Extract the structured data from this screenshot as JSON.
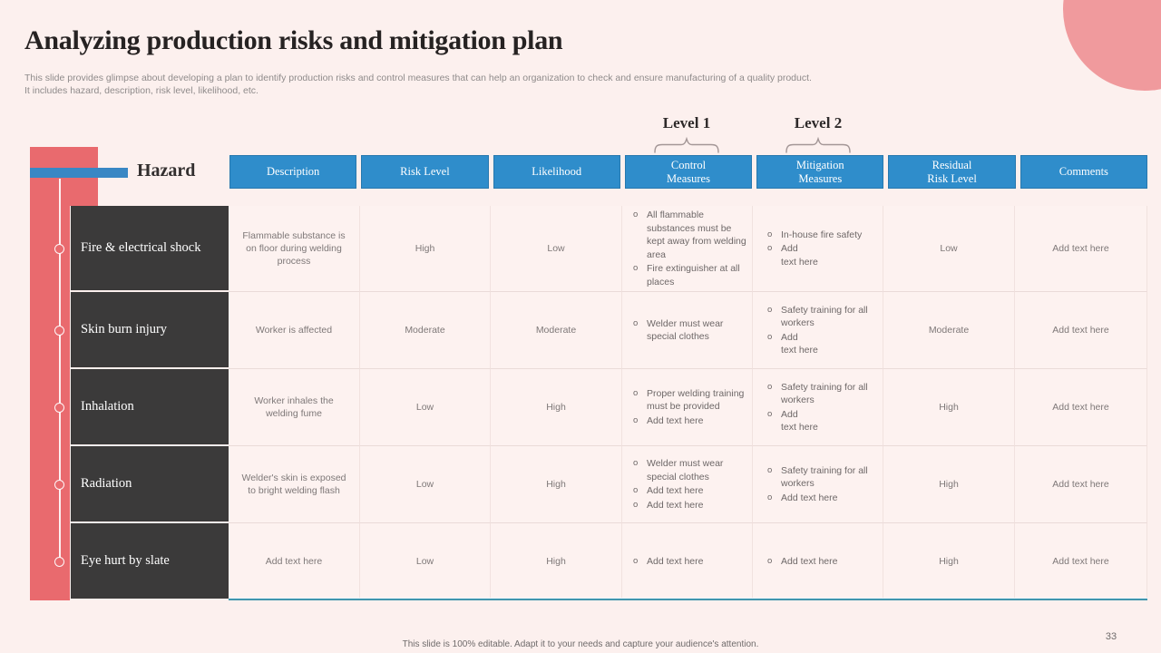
{
  "slide": {
    "title": "Analyzing production risks and mitigation plan",
    "subtitle": "This slide provides glimpse about developing a plan to identify production risks and control measures that can help an organization to check and ensure manufacturing of a quality product.\nIt includes hazard, description, risk level, likelihood, etc.",
    "footer": "This slide is 100% editable. Adapt it to your needs and capture your audience's attention.",
    "page_number": "33"
  },
  "colors": {
    "background": "#fcf0ee",
    "accent_red": "#e96a6e",
    "accent_pink_circle": "#f09a9d",
    "accent_blue": "#2f8dcb",
    "dark_cell": "#3b3a3a",
    "light_cell": "#fdf2f0",
    "underline_teal": "#4195ad"
  },
  "levels": {
    "level1": "Level 1",
    "level2": "Level 2"
  },
  "hazard_label": "Hazard",
  "bullet_marker": "o",
  "columns": [
    "Description",
    "Risk Level",
    "Likelihood",
    "Control\nMeasures",
    "Mitigation\nMeasures",
    "Residual\nRisk Level",
    "Comments"
  ],
  "rows": [
    {
      "hazard": "Fire & electrical shock",
      "description": "Flammable substance is on floor during welding process",
      "risk_level": "High",
      "likelihood": "Low",
      "control": [
        "All flammable substances must be kept away from welding area",
        "Fire extinguisher at all places"
      ],
      "mitigation": [
        "In-house fire safety",
        "Add\ntext here"
      ],
      "residual": "Low",
      "comments": "Add text here"
    },
    {
      "hazard": "Skin burn injury",
      "description": "Worker is affected",
      "risk_level": "Moderate",
      "likelihood": "Moderate",
      "control": [
        "Welder must wear special clothes"
      ],
      "mitigation": [
        "Safety training for all workers",
        "Add\ntext here"
      ],
      "residual": "Moderate",
      "comments": "Add text here"
    },
    {
      "hazard": "Inhalation",
      "description": "Worker inhales the welding fume",
      "risk_level": "Low",
      "likelihood": "High",
      "control": [
        "Proper welding training must be provided",
        "Add text here"
      ],
      "mitigation": [
        "Safety training for all workers",
        "Add\ntext here"
      ],
      "residual": "High",
      "comments": "Add text here"
    },
    {
      "hazard": "Radiation",
      "description": "Welder's skin is exposed to bright welding flash",
      "risk_level": "Low",
      "likelihood": "High",
      "control": [
        "Welder must wear special clothes",
        "Add text here",
        "Add text here"
      ],
      "mitigation": [
        "Safety training for all workers",
        "Add text here"
      ],
      "residual": "High",
      "comments": "Add text here"
    },
    {
      "hazard": "Eye hurt by slate",
      "description": "Add text here",
      "risk_level": "Low",
      "likelihood": "High",
      "control": [
        "Add text here"
      ],
      "mitigation": [
        "Add text here"
      ],
      "residual": "High",
      "comments": "Add text here"
    }
  ]
}
